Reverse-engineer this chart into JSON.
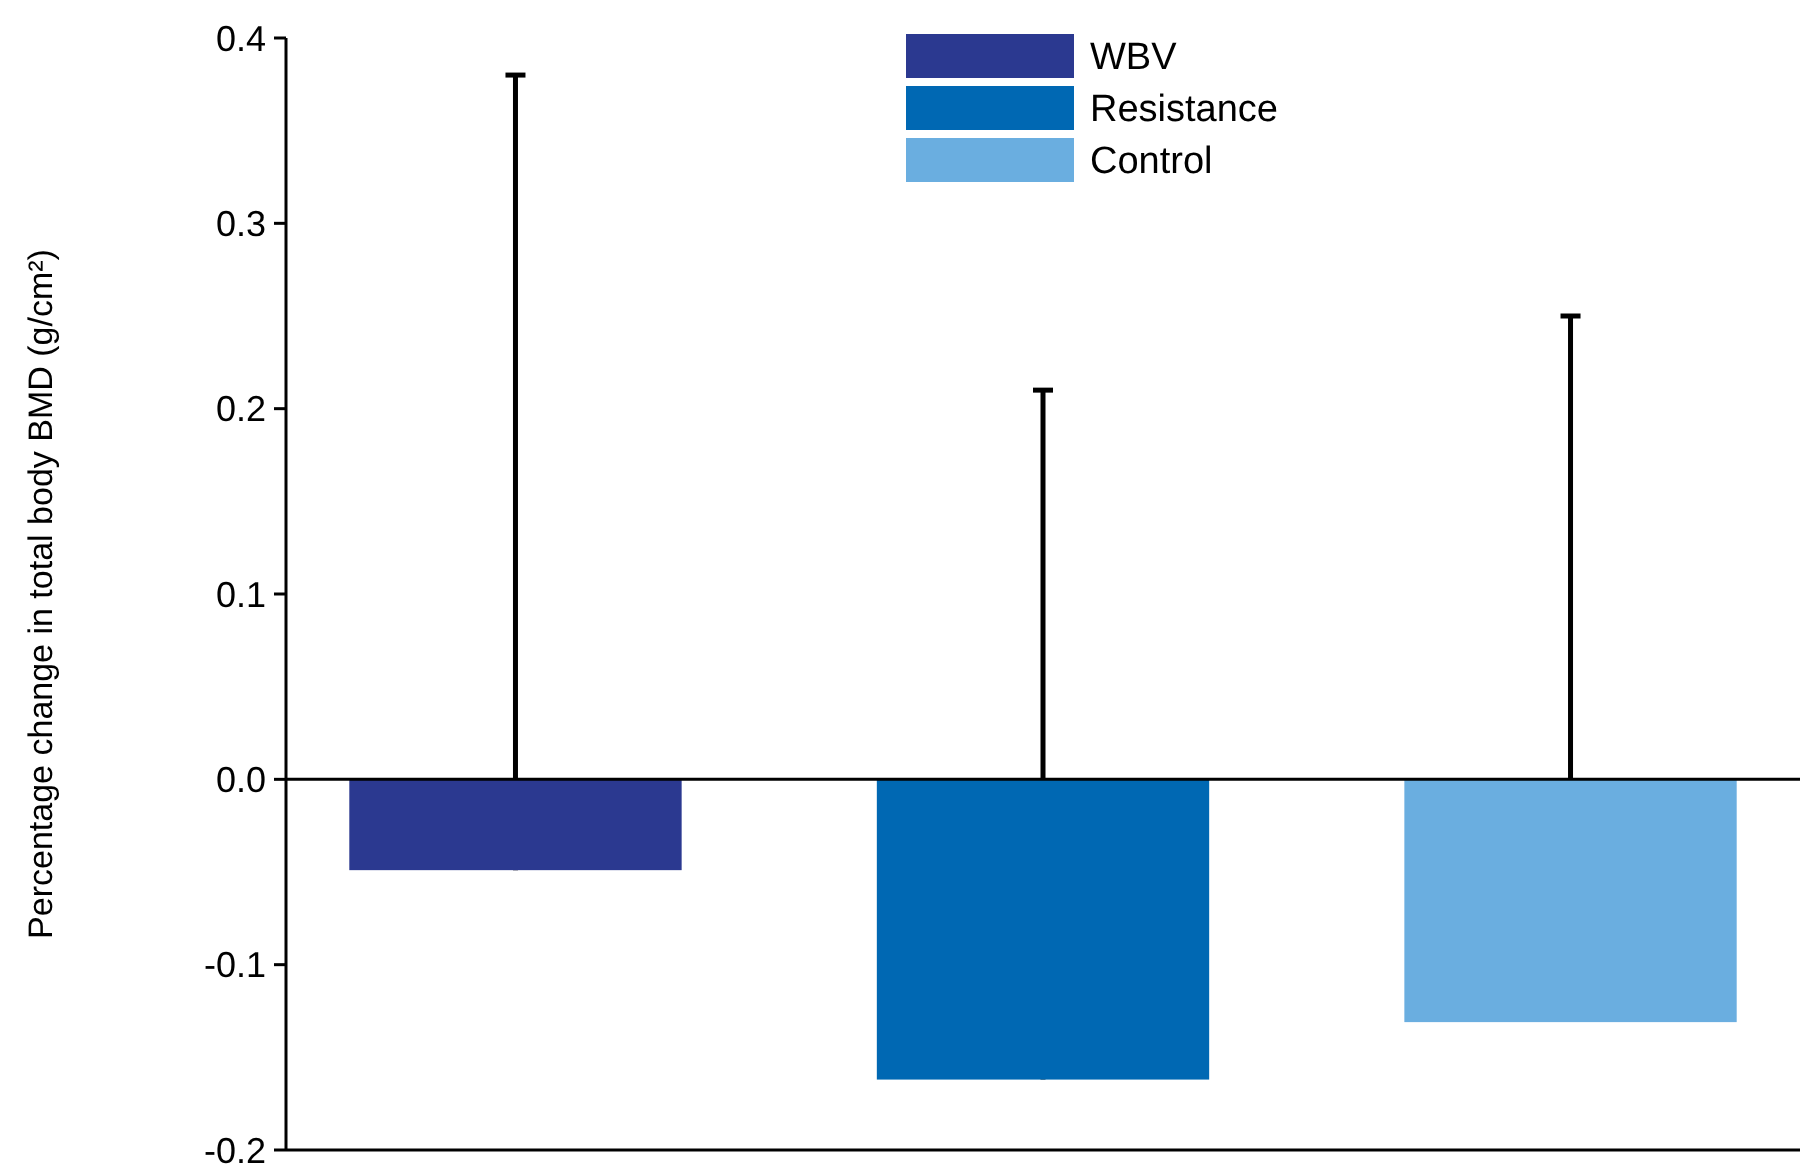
{
  "chart_data": {
    "type": "bar",
    "ylabel": "Percentage change in total body BMD (g/cm²)",
    "categories": [
      null,
      null,
      null
    ],
    "series": [
      {
        "name": "WBV",
        "color": "#2b3990",
        "values": [
          -0.049,
          null,
          null
        ],
        "errors": [
          [
            -0.049,
            0.38
          ],
          null,
          null
        ]
      },
      {
        "name": "Resistance",
        "color": "#0068b3",
        "values": [
          null,
          -0.162,
          null
        ],
        "errors": [
          null,
          [
            -0.162,
            0.21
          ],
          null
        ]
      },
      {
        "name": "Control",
        "color": "#6aaee0",
        "values": [
          null,
          null,
          -0.131
        ],
        "errors": [
          null,
          null,
          [
            -0.131,
            0.25
          ]
        ]
      }
    ],
    "ylim": [
      -0.2,
      0.4
    ],
    "yticks": [
      {
        "value": -0.2,
        "label": "-0.2"
      },
      {
        "value": -0.1,
        "label": "-0.1"
      },
      {
        "value": 0,
        "label": "0.0"
      },
      {
        "value": 0.1,
        "label": "0.1"
      },
      {
        "value": 0.2,
        "label": "0.2"
      },
      {
        "value": 0.3,
        "label": "0.3"
      },
      {
        "value": 0.4,
        "label": "0.4"
      }
    ],
    "ref_lines": [
      {
        "axis": "y",
        "value": 0
      }
    ],
    "grid": false,
    "legend": "top"
  }
}
